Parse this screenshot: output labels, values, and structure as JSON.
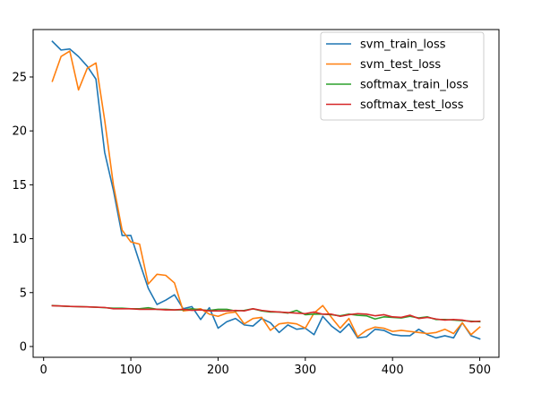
{
  "chart_data": {
    "type": "line",
    "xlim": [
      -12,
      522
    ],
    "ylim": [
      -1,
      29.4
    ],
    "xticks": [
      0,
      100,
      200,
      300,
      400,
      500
    ],
    "yticks": [
      0,
      5,
      10,
      15,
      20,
      25
    ],
    "x": [
      10,
      20,
      30,
      40,
      50,
      60,
      70,
      80,
      90,
      100,
      110,
      120,
      130,
      140,
      150,
      160,
      170,
      180,
      190,
      200,
      210,
      220,
      230,
      240,
      250,
      260,
      270,
      280,
      290,
      300,
      310,
      320,
      330,
      340,
      350,
      360,
      370,
      380,
      390,
      400,
      410,
      420,
      430,
      440,
      450,
      460,
      470,
      480,
      490,
      500
    ],
    "legend_position": "upper right",
    "series": [
      {
        "name": "svm_train_loss",
        "color": "#1f77b4",
        "values": [
          28.3,
          27.5,
          27.6,
          26.9,
          26.0,
          24.8,
          18.0,
          14.5,
          10.3,
          10.3,
          7.8,
          5.4,
          3.9,
          4.3,
          4.8,
          3.5,
          3.7,
          2.5,
          3.6,
          1.7,
          2.3,
          2.6,
          2.0,
          1.9,
          2.6,
          2.2,
          1.3,
          2.0,
          1.6,
          1.7,
          1.1,
          2.8,
          1.9,
          1.3,
          2.1,
          0.8,
          0.9,
          1.6,
          1.5,
          1.1,
          1.0,
          1.0,
          1.6,
          1.1,
          0.8,
          1.0,
          0.8,
          2.2,
          1.0,
          0.7
        ]
      },
      {
        "name": "svm_test_loss",
        "color": "#ff7f0e",
        "values": [
          24.6,
          26.9,
          27.4,
          23.8,
          25.8,
          26.3,
          21.0,
          15.0,
          10.8,
          9.7,
          9.5,
          5.8,
          6.7,
          6.6,
          5.9,
          3.3,
          3.4,
          3.5,
          3.0,
          2.8,
          3.1,
          3.2,
          2.1,
          2.6,
          2.7,
          1.5,
          2.1,
          2.2,
          2.1,
          1.7,
          3.1,
          3.8,
          2.7,
          1.7,
          2.6,
          0.9,
          1.5,
          1.8,
          1.7,
          1.4,
          1.5,
          1.4,
          1.3,
          1.2,
          1.3,
          1.6,
          1.2,
          2.2,
          1.1,
          1.8
        ]
      },
      {
        "name": "softmax_train_loss",
        "color": "#2ca02c",
        "values": [
          3.8,
          3.75,
          3.72,
          3.7,
          3.68,
          3.65,
          3.6,
          3.55,
          3.55,
          3.5,
          3.5,
          3.6,
          3.45,
          3.45,
          3.4,
          3.4,
          3.5,
          3.4,
          3.35,
          3.45,
          3.45,
          3.3,
          3.35,
          3.5,
          3.3,
          3.2,
          3.2,
          3.1,
          3.35,
          2.95,
          3.0,
          3.0,
          2.95,
          2.85,
          3.0,
          2.9,
          2.85,
          2.55,
          2.75,
          2.7,
          2.65,
          2.8,
          2.65,
          2.75,
          2.5,
          2.5,
          2.45,
          2.4,
          2.35,
          2.3
        ]
      },
      {
        "name": "softmax_test_loss",
        "color": "#d62728",
        "values": [
          3.78,
          3.76,
          3.72,
          3.7,
          3.68,
          3.65,
          3.62,
          3.5,
          3.5,
          3.5,
          3.45,
          3.45,
          3.45,
          3.4,
          3.4,
          3.45,
          3.35,
          3.4,
          3.3,
          3.3,
          3.3,
          3.35,
          3.3,
          3.5,
          3.35,
          3.25,
          3.2,
          3.15,
          3.1,
          3.05,
          3.2,
          3.0,
          3.0,
          2.8,
          2.95,
          3.05,
          3.0,
          2.85,
          2.95,
          2.75,
          2.7,
          2.9,
          2.6,
          2.7,
          2.55,
          2.45,
          2.5,
          2.45,
          2.3,
          2.35
        ]
      }
    ]
  }
}
